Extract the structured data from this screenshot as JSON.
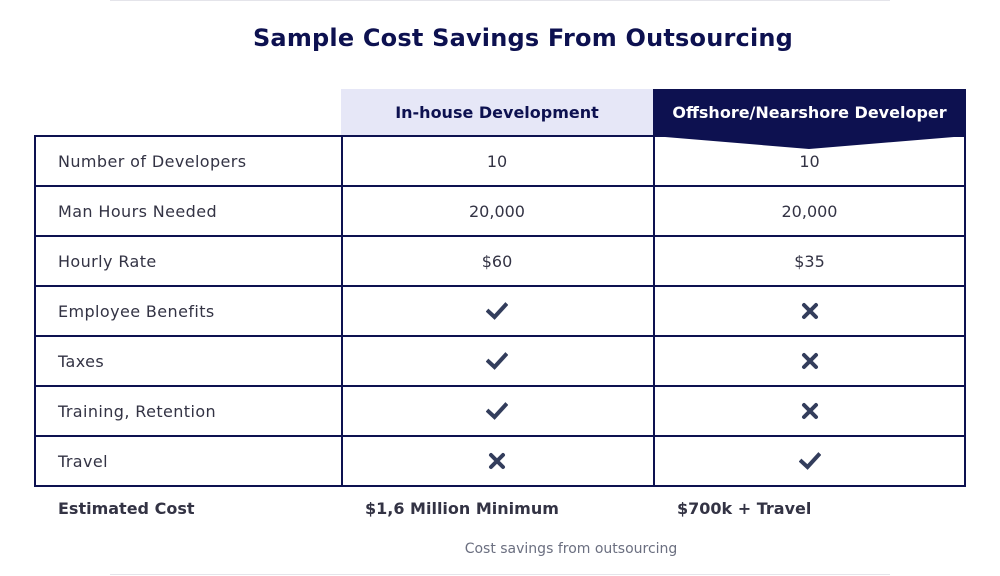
{
  "title": "Sample Cost Savings From Outsourcing",
  "columns": {
    "inhouse": "In-house Development",
    "offshore": "Offshore/Nearshore Developer"
  },
  "rows": [
    {
      "label": "Number of Developers",
      "inhouse": "10",
      "offshore": "10"
    },
    {
      "label": "Man Hours Needed",
      "inhouse": "20,000",
      "offshore": "20,000"
    },
    {
      "label": "Hourly Rate",
      "inhouse": "$60",
      "offshore": "$35"
    },
    {
      "label": "Employee Benefits",
      "inhouse_icon": "check-icon",
      "offshore_icon": "cross-icon"
    },
    {
      "label": "Taxes",
      "inhouse_icon": "check-icon",
      "offshore_icon": "cross-icon"
    },
    {
      "label": "Training, Retention",
      "inhouse_icon": "check-icon",
      "offshore_icon": "cross-icon"
    },
    {
      "label": "Travel",
      "inhouse_icon": "cross-icon",
      "offshore_icon": "check-icon"
    }
  ],
  "footer": {
    "label": "Estimated Cost",
    "inhouse": "$1,6 Million Minimum",
    "offshore": "$700k + Travel"
  },
  "caption": "Cost savings from outsourcing",
  "colors": {
    "navy": "#0d1150",
    "inhouse_header_bg": "#e6e7f7",
    "icon": "#333d5c"
  }
}
